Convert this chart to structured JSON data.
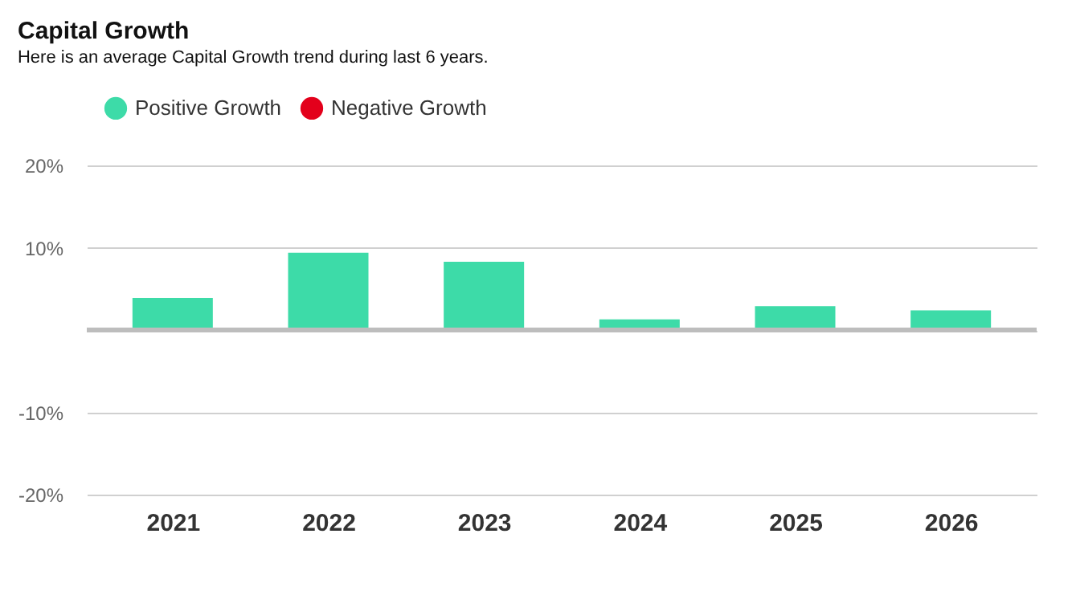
{
  "chart_data": {
    "type": "bar",
    "title": "Capital Growth",
    "subtitle": "Here is an average Capital Growth trend during last 6 years.",
    "categories": [
      "2021",
      "2022",
      "2023",
      "2024",
      "2025",
      "2026"
    ],
    "series": [
      {
        "name": "Positive Growth",
        "color": "#3ddba8",
        "values": [
          3.9,
          9.4,
          8.3,
          1.3,
          2.9,
          2.4
        ]
      },
      {
        "name": "Negative Growth",
        "color": "#e3001b",
        "values": [
          null,
          null,
          null,
          null,
          null,
          null
        ]
      }
    ],
    "ylim": [
      -20,
      20
    ],
    "yticks": [
      {
        "value": -20,
        "label": "-20%"
      },
      {
        "value": -10,
        "label": "-10%"
      },
      {
        "value": 0,
        "label": null
      },
      {
        "value": 10,
        "label": "10%"
      },
      {
        "value": 20,
        "label": "20%"
      }
    ],
    "ref_lines": [
      {
        "axis": "y",
        "value": 0,
        "color": "#bdbdbd"
      }
    ],
    "grid": "y",
    "legend": "top"
  }
}
